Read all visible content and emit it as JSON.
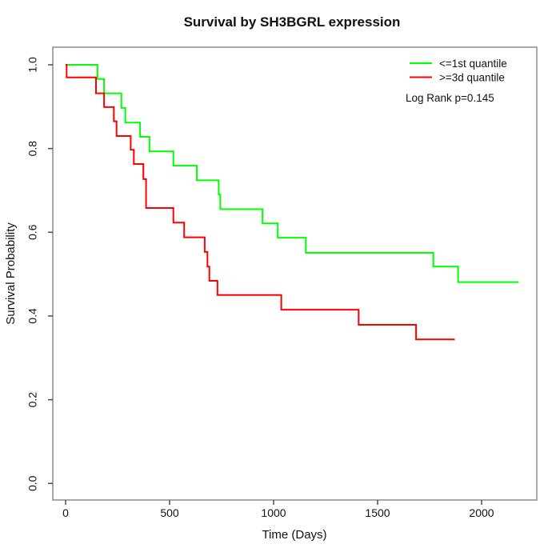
{
  "chart_data": {
    "type": "line",
    "subtype": "kaplan-meier-step-curves",
    "title": "Survival by SH3BGRL expression",
    "xlabel": "Time (Days)",
    "ylabel": "Survival Probability",
    "xlim": [
      0,
      2265
    ],
    "ylim": [
      0.0,
      1.0
    ],
    "x_ticks": [
      0,
      500,
      1000,
      1500,
      2000
    ],
    "y_ticks": [
      "0.0",
      "0.2",
      "0.4",
      "0.6",
      "0.8",
      "1.0"
    ],
    "grid": false,
    "legend_position": "top-right-inside",
    "annotation": "Log Rank p=0.145",
    "colors": {
      "low_expression": "#00ff00",
      "high_expression": "#ff0000",
      "box": "#8c8c8c",
      "tick": "#4d4d4d",
      "text": "#111111"
    },
    "series": [
      {
        "name": "<=1st quantile",
        "color": "#00ff00",
        "end_time": 2178,
        "points": [
          [
            0,
            1.0
          ],
          [
            153,
            0.966
          ],
          [
            185,
            0.932
          ],
          [
            268,
            0.897
          ],
          [
            287,
            0.862
          ],
          [
            358,
            0.828
          ],
          [
            403,
            0.793
          ],
          [
            518,
            0.759
          ],
          [
            631,
            0.724
          ],
          [
            736,
            0.69
          ],
          [
            744,
            0.655
          ],
          [
            947,
            0.621
          ],
          [
            1020,
            0.587
          ],
          [
            1155,
            0.551
          ],
          [
            1768,
            0.518
          ],
          [
            1887,
            0.481
          ]
        ]
      },
      {
        "name": ">=3d quantile",
        "color": "#ff0000",
        "end_time": 1871,
        "points": [
          [
            0,
            1.0
          ],
          [
            5,
            0.97
          ],
          [
            146,
            0.932
          ],
          [
            185,
            0.899
          ],
          [
            232,
            0.865
          ],
          [
            245,
            0.83
          ],
          [
            313,
            0.797
          ],
          [
            328,
            0.763
          ],
          [
            374,
            0.727
          ],
          [
            387,
            0.658
          ],
          [
            518,
            0.623
          ],
          [
            570,
            0.588
          ],
          [
            669,
            0.553
          ],
          [
            682,
            0.518
          ],
          [
            691,
            0.484
          ],
          [
            730,
            0.45
          ],
          [
            1037,
            0.415
          ],
          [
            1409,
            0.379
          ],
          [
            1685,
            0.344
          ]
        ]
      }
    ]
  }
}
